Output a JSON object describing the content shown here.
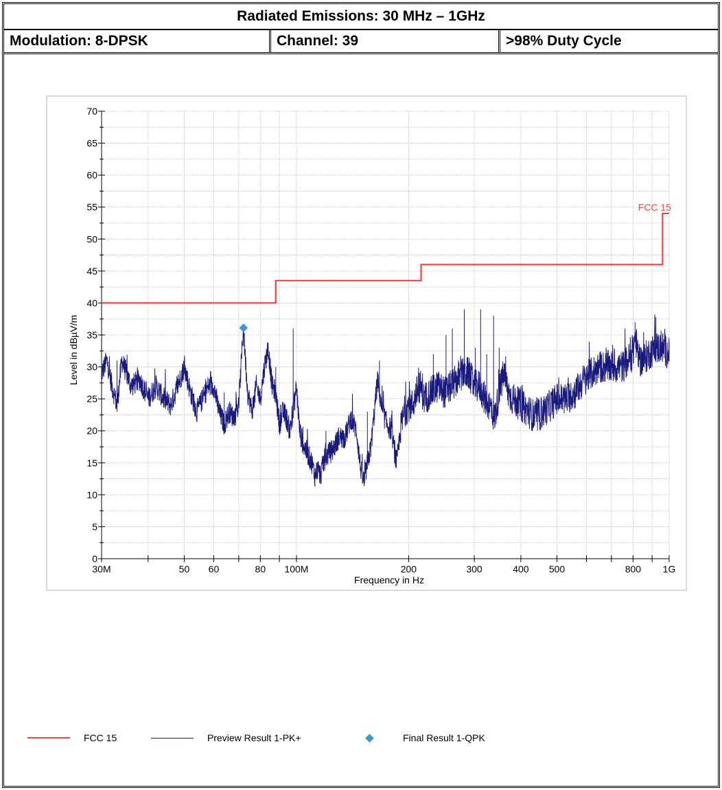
{
  "header": {
    "title": "Radiated Emissions: 30 MHz – 1GHz",
    "modulation": "Modulation: 8-DPSK",
    "channel": "Channel: 39",
    "duty_cycle": ">98%  Duty Cycle"
  },
  "colors": {
    "limit": "#ef4444",
    "preview": "#1a1a7e",
    "final": "#3b96d9"
  },
  "chart_data": {
    "type": "line",
    "x_scale": "log",
    "xlim": [
      30,
      1000
    ],
    "ylim": [
      0,
      70
    ],
    "xlabel": "Frequency in Hz",
    "ylabel": "Level in dBµV/m",
    "y_ticks": [
      0,
      5,
      10,
      15,
      20,
      25,
      30,
      35,
      40,
      45,
      50,
      55,
      60,
      65,
      70
    ],
    "x_tick_labels": [
      {
        "value": 30,
        "label": "30M"
      },
      {
        "value": 50,
        "label": "50"
      },
      {
        "value": 60,
        "label": "60"
      },
      {
        "value": 80,
        "label": "80"
      },
      {
        "value": 100,
        "label": "100M"
      },
      {
        "value": 200,
        "label": "200"
      },
      {
        "value": 300,
        "label": "300"
      },
      {
        "value": 400,
        "label": "400"
      },
      {
        "value": 500,
        "label": "500"
      },
      {
        "value": 800,
        "label": "800"
      },
      {
        "value": 1000,
        "label": "1G"
      }
    ],
    "grid": true,
    "series": [
      {
        "name": "FCC 15",
        "style": "step",
        "label": "FCC 15",
        "points": [
          [
            30,
            40
          ],
          [
            88,
            40
          ],
          [
            88,
            43.5
          ],
          [
            216,
            43.5
          ],
          [
            216,
            46
          ],
          [
            960,
            46
          ],
          [
            960,
            54
          ],
          [
            1000,
            54
          ]
        ]
      },
      {
        "name": "Preview Result 1-PK+",
        "style": "trace",
        "points": [
          [
            30,
            29
          ],
          [
            31,
            31
          ],
          [
            32,
            27
          ],
          [
            33,
            24
          ],
          [
            34,
            31
          ],
          [
            35,
            29
          ],
          [
            36,
            27
          ],
          [
            38,
            28
          ],
          [
            40,
            25
          ],
          [
            42,
            27
          ],
          [
            44,
            25
          ],
          [
            46,
            24
          ],
          [
            48,
            27
          ],
          [
            50,
            30
          ],
          [
            52,
            26
          ],
          [
            54,
            23
          ],
          [
            56,
            25
          ],
          [
            58,
            27
          ],
          [
            60,
            27
          ],
          [
            62,
            23
          ],
          [
            64,
            21
          ],
          [
            66,
            23
          ],
          [
            68,
            22
          ],
          [
            70,
            24
          ],
          [
            72,
            36
          ],
          [
            74,
            26
          ],
          [
            76,
            23
          ],
          [
            78,
            27
          ],
          [
            80,
            25
          ],
          [
            82,
            30
          ],
          [
            84,
            33
          ],
          [
            86,
            27
          ],
          [
            88,
            26
          ],
          [
            90,
            21
          ],
          [
            92,
            23
          ],
          [
            94,
            22
          ],
          [
            96,
            20
          ],
          [
            98,
            23
          ],
          [
            100,
            27
          ],
          [
            102,
            20
          ],
          [
            104,
            18
          ],
          [
            106,
            17
          ],
          [
            108,
            16
          ],
          [
            110,
            15
          ],
          [
            112,
            13
          ],
          [
            114,
            14
          ],
          [
            116,
            13
          ],
          [
            118,
            15
          ],
          [
            120,
            16
          ],
          [
            125,
            17
          ],
          [
            130,
            19
          ],
          [
            135,
            19
          ],
          [
            140,
            22
          ],
          [
            145,
            20
          ],
          [
            148,
            15
          ],
          [
            150,
            13
          ],
          [
            152,
            12
          ],
          [
            155,
            15
          ],
          [
            158,
            17
          ],
          [
            160,
            20
          ],
          [
            165,
            28
          ],
          [
            170,
            23
          ],
          [
            175,
            21
          ],
          [
            180,
            20
          ],
          [
            184,
            16
          ],
          [
            186,
            15
          ],
          [
            190,
            20
          ],
          [
            195,
            23
          ],
          [
            200,
            24
          ],
          [
            205,
            24
          ],
          [
            210,
            26
          ],
          [
            215,
            27
          ],
          [
            220,
            25
          ],
          [
            230,
            26
          ],
          [
            240,
            27
          ],
          [
            250,
            26
          ],
          [
            260,
            27
          ],
          [
            270,
            28
          ],
          [
            280,
            29
          ],
          [
            290,
            29
          ],
          [
            300,
            27
          ],
          [
            310,
            27
          ],
          [
            320,
            25
          ],
          [
            330,
            24
          ],
          [
            340,
            22
          ],
          [
            350,
            26
          ],
          [
            360,
            29
          ],
          [
            370,
            26
          ],
          [
            380,
            25
          ],
          [
            400,
            24
          ],
          [
            420,
            23
          ],
          [
            440,
            22
          ],
          [
            460,
            23
          ],
          [
            480,
            24
          ],
          [
            500,
            25
          ],
          [
            530,
            25
          ],
          [
            560,
            26
          ],
          [
            590,
            28
          ],
          [
            620,
            29
          ],
          [
            650,
            30
          ],
          [
            700,
            30
          ],
          [
            750,
            30
          ],
          [
            800,
            32
          ],
          [
            810,
            35
          ],
          [
            830,
            31
          ],
          [
            850,
            31
          ],
          [
            880,
            32
          ],
          [
            920,
            33
          ],
          [
            960,
            33
          ],
          [
            1000,
            32
          ]
        ],
        "peaks": [
          [
            33,
            31
          ],
          [
            50,
            30
          ],
          [
            57,
            26
          ],
          [
            64,
            26
          ],
          [
            72,
            36
          ],
          [
            84,
            33
          ],
          [
            88,
            30
          ],
          [
            98,
            36
          ],
          [
            120,
            20
          ],
          [
            155,
            23
          ],
          [
            167,
            31
          ],
          [
            200,
            25
          ],
          [
            218,
            29
          ],
          [
            233,
            32
          ],
          [
            252,
            35
          ],
          [
            262,
            36
          ],
          [
            272,
            31
          ],
          [
            282,
            39
          ],
          [
            302,
            33
          ],
          [
            312,
            39
          ],
          [
            324,
            32
          ],
          [
            338,
            38
          ],
          [
            350,
            33
          ],
          [
            400,
            27
          ],
          [
            500,
            27
          ],
          [
            600,
            30
          ],
          [
            810,
            37
          ],
          [
            1000,
            34
          ]
        ]
      },
      {
        "name": "Final Result 1-QPK",
        "style": "marker",
        "points": [
          [
            72.1,
            36.1
          ]
        ]
      }
    ],
    "legend": {
      "position": "bottom",
      "entries": [
        "FCC 15",
        "Preview Result 1-PK+",
        "Final Result 1-QPK"
      ]
    }
  }
}
